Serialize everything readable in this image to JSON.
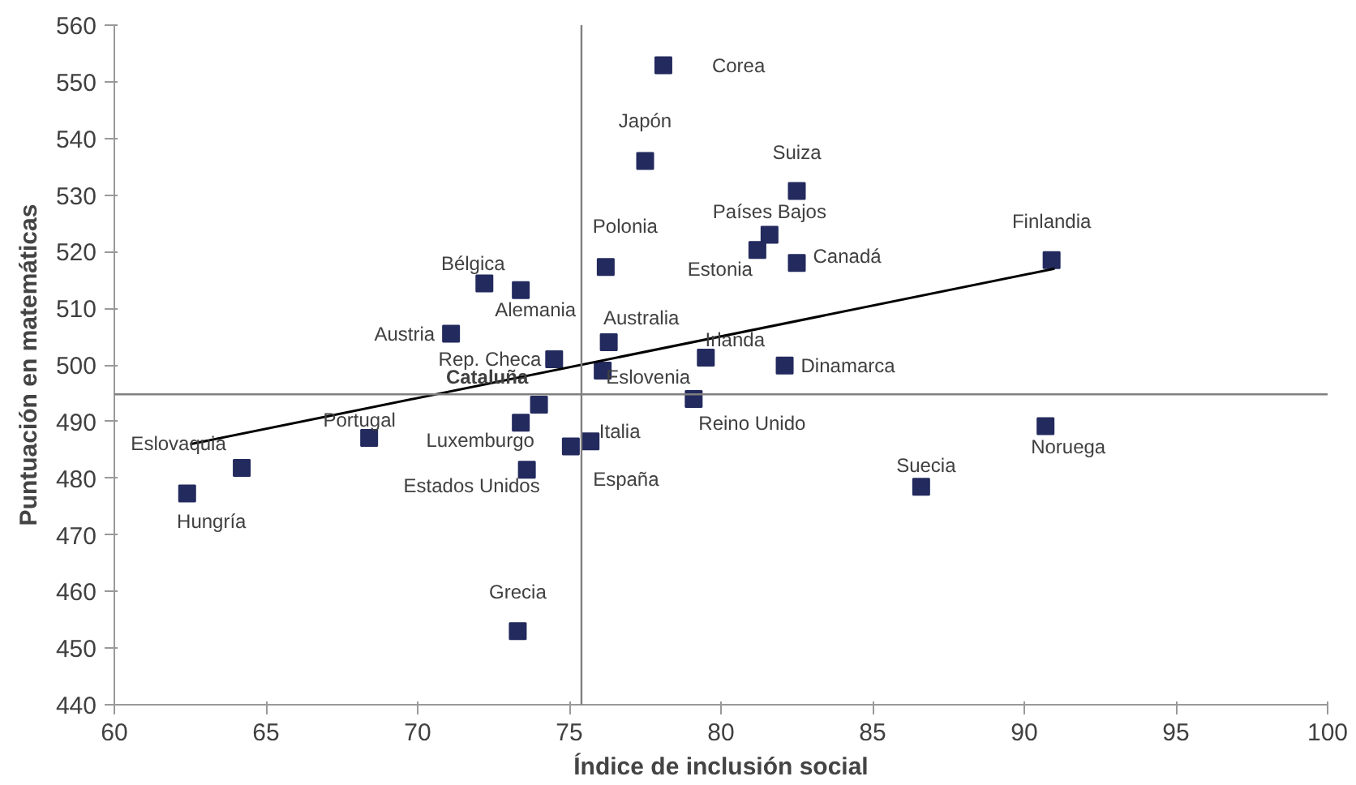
{
  "chart_data": {
    "type": "scatter",
    "xlabel": "Índice de inclusión social",
    "ylabel": "Puntuación en matemáticas",
    "xlim": [
      60,
      100
    ],
    "ylim": [
      440,
      560
    ],
    "xticks": [
      60,
      65,
      70,
      75,
      80,
      85,
      90,
      95,
      100
    ],
    "yticks": [
      440,
      450,
      460,
      470,
      480,
      490,
      500,
      510,
      520,
      530,
      540,
      550,
      560
    ],
    "grid": false,
    "marker": "square",
    "series": [
      {
        "color": "#232a5e",
        "x": [
          78.1,
          77.5,
          82.5,
          81.6,
          81.2,
          82.5,
          90.9,
          76.2,
          72.2,
          73.4,
          71.1,
          76.3,
          74.5,
          79.5,
          82.1,
          76.1,
          74.0,
          79.1,
          73.4,
          75.7,
          75.05,
          73.6,
          68.4,
          64.2,
          62.4,
          73.3,
          86.6,
          90.7
        ],
        "values": [
          552.9,
          536,
          530.7,
          523,
          520.3,
          518,
          518.5,
          517.3,
          514.4,
          513.2,
          505.5,
          504,
          501,
          501.3,
          499.9,
          499,
          493,
          494,
          489.8,
          486.5,
          485.6,
          481.5,
          487.1,
          481.8,
          477.3,
          453,
          478.5,
          489.2
        ]
      },
      {
        "type": "line",
        "marker": "none",
        "color": "#000000",
        "x": [
          62.5,
          91
        ],
        "values": [
          486,
          517
        ]
      }
    ],
    "ref_lines": [
      {
        "axis": "x",
        "value": 75.4,
        "color": "#7f7f7f"
      },
      {
        "axis": "y",
        "value": 494.8,
        "color": "#7f7f7f"
      }
    ],
    "annotations": [
      {
        "text": "Corea",
        "x": 78.1,
        "y": 552.9
      },
      {
        "text": "Japón",
        "x": 77.5,
        "y": 536
      },
      {
        "text": "Suiza",
        "x": 82.5,
        "y": 530.7
      },
      {
        "text": "Países Bajos",
        "x": 81.6,
        "y": 523
      },
      {
        "text": "Estonia",
        "x": 81.2,
        "y": 520.3
      },
      {
        "text": "Canadá",
        "x": 82.5,
        "y": 518
      },
      {
        "text": "Finlandia",
        "x": 90.9,
        "y": 518.5
      },
      {
        "text": "Polonia",
        "x": 76.2,
        "y": 517.3
      },
      {
        "text": "Bélgica",
        "x": 72.2,
        "y": 514.4
      },
      {
        "text": "Alemania",
        "x": 73.4,
        "y": 513.2
      },
      {
        "text": "Austria",
        "x": 71.1,
        "y": 505.5
      },
      {
        "text": "Australia",
        "x": 76.3,
        "y": 504
      },
      {
        "text": "Rep. Checa",
        "x": 74.5,
        "y": 501
      },
      {
        "text": "Irlanda",
        "x": 79.5,
        "y": 501.3
      },
      {
        "text": "Dinamarca",
        "x": 82.1,
        "y": 499.9
      },
      {
        "text": "Eslovenia",
        "x": 76.1,
        "y": 499
      },
      {
        "text": "Cataluña",
        "x": 74.0,
        "y": 493
      },
      {
        "text": "Reino Unido",
        "x": 79.1,
        "y": 494
      },
      {
        "text": "Luxemburgo",
        "x": 73.4,
        "y": 489.8
      },
      {
        "text": "Italia",
        "x": 75.7,
        "y": 486.5
      },
      {
        "text": "España",
        "x": 75.05,
        "y": 485.6
      },
      {
        "text": "Estados Unidos",
        "x": 73.6,
        "y": 481.5
      },
      {
        "text": "Portugal",
        "x": 68.4,
        "y": 487.1
      },
      {
        "text": "Eslovaquia",
        "x": 64.2,
        "y": 481.8
      },
      {
        "text": "Hungría",
        "x": 62.4,
        "y": 477.3
      },
      {
        "text": "Grecia",
        "x": 73.3,
        "y": 453
      },
      {
        "text": "Suecia",
        "x": 86.6,
        "y": 478.5
      },
      {
        "text": "Noruega",
        "x": 90.7,
        "y": 489.2
      }
    ]
  }
}
